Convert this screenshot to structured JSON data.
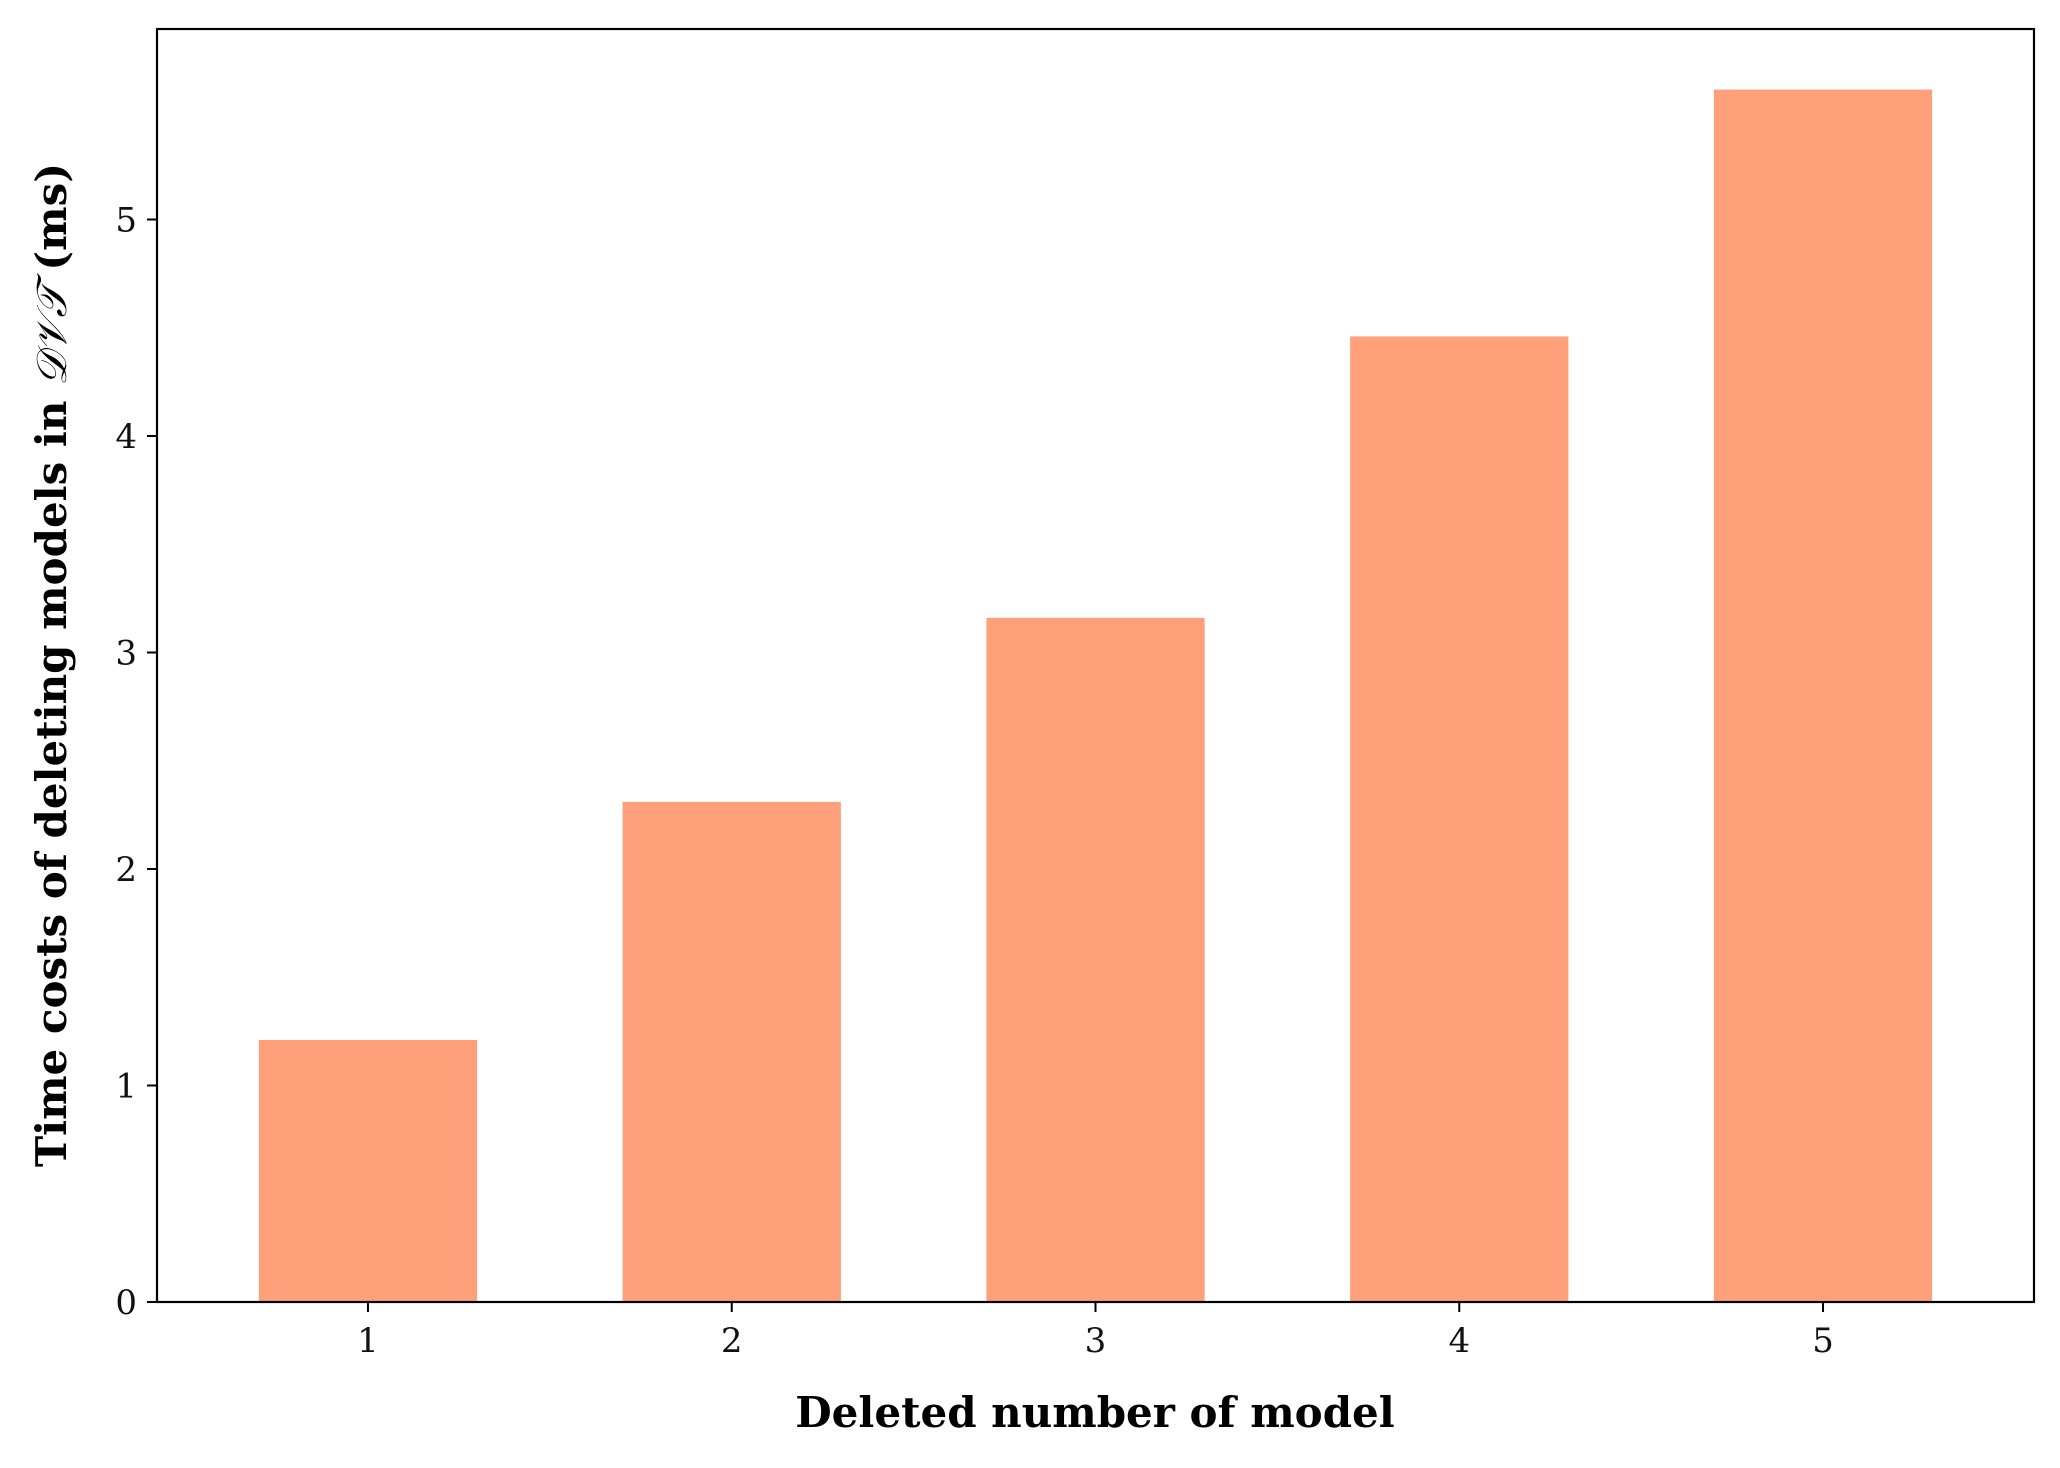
{
  "chart_data": {
    "type": "bar",
    "categories": [
      "1",
      "2",
      "3",
      "4",
      "5"
    ],
    "values": [
      1.21,
      2.31,
      3.16,
      4.46,
      5.6
    ],
    "xlabel": "Deleted number of model",
    "ylabel_prefix": "Time costs of deleting models in ",
    "ylabel_math": "𝒟𝒱𝒯",
    "ylabel_suffix": " (ms)",
    "yticks": [
      "0",
      "1",
      "2",
      "3",
      "4",
      "5"
    ],
    "ylim": [
      0,
      5.88
    ],
    "xlim": [
      0.42,
      5.58
    ],
    "bar_width": 0.6,
    "grid": false,
    "bar_color": "#FFA07A"
  }
}
